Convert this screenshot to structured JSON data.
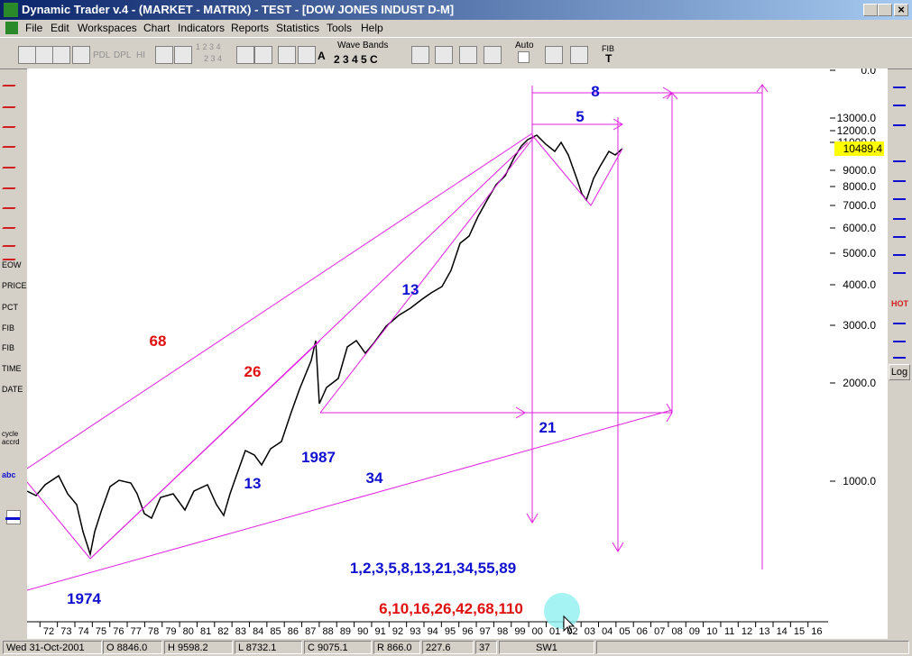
{
  "title_bar": {
    "title": "Dynamic Trader v.4 - (MARKET - MATRIX) - TEST - [DOW JONES INDUST D-M]"
  },
  "menu": [
    "File",
    "Edit",
    "Workspaces",
    "Chart",
    "Indicators",
    "Reports",
    "Statistics",
    "Tools",
    "Help"
  ],
  "toolbar": {
    "pdl": "PDL",
    "dpl": "DPL",
    "hi": "HI",
    "wave_digits_top": "1 2 3 4",
    "wave_digits_bottom": "2 3 4",
    "wave_bands": "Wave Bands",
    "wave_buttons": "2 3 4 5 C",
    "a": "A",
    "auto": "Auto",
    "fib": "FIB",
    "fib_t": "T"
  },
  "left_toolbar": [
    "EOW",
    "PRICE",
    "PCT",
    "FIB",
    "FIB",
    "TIME",
    "DATE",
    "cycle accrd",
    "abc"
  ],
  "right_toolbar": {
    "hot": "HOT",
    "log": "Log"
  },
  "chart": {
    "y_axis": [
      "0.0",
      "13000.0",
      "12000.0",
      "11000.0",
      "9000.0",
      "8000.0",
      "7000.0",
      "6000.0",
      "5000.0",
      "4000.0",
      "3000.0",
      "2000.0",
      "1000.0"
    ],
    "last_price": "10489.4",
    "x_axis": [
      "72",
      "73",
      "74",
      "75",
      "76",
      "77",
      "78",
      "79",
      "80",
      "81",
      "82",
      "83",
      "84",
      "85",
      "86",
      "87",
      "88",
      "89",
      "90",
      "91",
      "92",
      "93",
      "94",
      "95",
      "96",
      "97",
      "98",
      "99",
      "00",
      "01",
      "02",
      "03",
      "04",
      "05",
      "06",
      "07",
      "08",
      "09",
      "10",
      "11",
      "12",
      "13",
      "14",
      "15",
      "16"
    ],
    "annotations": [
      {
        "text": "8",
        "color": "#1010d0"
      },
      {
        "text": "5",
        "color": "#1010d0"
      },
      {
        "text": "13",
        "color": "#1010d0"
      },
      {
        "text": "68",
        "color": "#e01010"
      },
      {
        "text": "26",
        "color": "#e01010"
      },
      {
        "text": "13",
        "color": "#1010d0"
      },
      {
        "text": "1987",
        "color": "#1010d0"
      },
      {
        "text": "34",
        "color": "#1010d0"
      },
      {
        "text": "21",
        "color": "#1010d0"
      },
      {
        "text": "1974",
        "color": "#1010d0"
      },
      {
        "text": "1,2,3,5,8,13,21,34,55,89",
        "color": "#1010d0"
      },
      {
        "text": "6,10,16,26,42,68,110",
        "color": "#e01010"
      }
    ]
  },
  "status_bar": [
    "Wed 31-Oct-2001",
    "O 8846.0",
    "H 9598.2",
    "L 8732.1",
    "C 9075.1",
    "R 866.0",
    "227.6",
    "37",
    "SW1"
  ]
}
